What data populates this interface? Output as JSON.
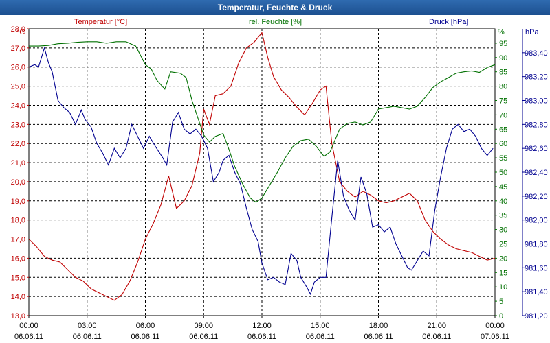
{
  "window": {
    "title": "Temperatur, Feuchte & Druck"
  },
  "colors": {
    "temp": "#c00000",
    "hum": "#007000",
    "press": "#000090",
    "grid": "#000000"
  },
  "chart_data": {
    "type": "line",
    "title": "Temperatur, Feuchte & Druck",
    "series_labels": {
      "temp": "Temperatur [°C]",
      "hum": "rel. Feuchte [%]",
      "press": "Druck [hPa]"
    },
    "units": {
      "temp": "°C",
      "hum": "%",
      "press": "hPa"
    },
    "x_range": [
      0,
      24
    ],
    "x_ticks": [
      {
        "t": 0,
        "time": "00:00",
        "date": "06.06.11"
      },
      {
        "t": 3,
        "time": "03:00",
        "date": "06.06.11"
      },
      {
        "t": 6,
        "time": "06:00",
        "date": "06.06.11"
      },
      {
        "t": 9,
        "time": "09:00",
        "date": "06.06.11"
      },
      {
        "t": 12,
        "time": "12:00",
        "date": "06.06.11"
      },
      {
        "t": 15,
        "time": "15:00",
        "date": "06.06.11"
      },
      {
        "t": 18,
        "time": "18:00",
        "date": "06.06.11"
      },
      {
        "t": 21,
        "time": "21:00",
        "date": "06.06.11"
      },
      {
        "t": 24,
        "time": "00:00",
        "date": "07.06.11"
      }
    ],
    "temp_range": [
      13,
      28
    ],
    "temp_ticks": [
      "13,0",
      "14,0",
      "15,0",
      "16,0",
      "17,0",
      "18,0",
      "19,0",
      "20,0",
      "21,0",
      "22,0",
      "23,0",
      "24,0",
      "25,0",
      "26,0",
      "27,0",
      "28,0"
    ],
    "hum_range": [
      0,
      100
    ],
    "hum_ticks": [
      "0",
      "5",
      "10",
      "15",
      "20",
      "25",
      "30",
      "35",
      "40",
      "45",
      "50",
      "55",
      "60",
      "65",
      "70",
      "75",
      "80",
      "85",
      "90",
      "95"
    ],
    "press_range": [
      981.2,
      983.6
    ],
    "press_ticks": [
      "981,20",
      "981,40",
      "981,60",
      "981,80",
      "982,00",
      "982,20",
      "982,40",
      "982,60",
      "982,80",
      "983,00",
      "983,20",
      "983,40"
    ],
    "series": [
      {
        "name": "Temperatur [°C]",
        "key": "temp",
        "points": [
          [
            0,
            17.0
          ],
          [
            0.4,
            16.6
          ],
          [
            0.8,
            16.1
          ],
          [
            1.2,
            15.9
          ],
          [
            1.6,
            15.8
          ],
          [
            2.0,
            15.4
          ],
          [
            2.4,
            15.0
          ],
          [
            2.8,
            14.8
          ],
          [
            3.2,
            14.4
          ],
          [
            3.6,
            14.2
          ],
          [
            4.0,
            14.0
          ],
          [
            4.4,
            13.8
          ],
          [
            4.8,
            14.1
          ],
          [
            5.2,
            14.8
          ],
          [
            5.6,
            15.8
          ],
          [
            6.0,
            17.0
          ],
          [
            6.4,
            17.8
          ],
          [
            6.8,
            18.8
          ],
          [
            7.2,
            20.3
          ],
          [
            7.6,
            18.6
          ],
          [
            8.0,
            19.0
          ],
          [
            8.4,
            19.8
          ],
          [
            8.8,
            21.5
          ],
          [
            9.0,
            23.8
          ],
          [
            9.3,
            23.0
          ],
          [
            9.6,
            24.5
          ],
          [
            10.0,
            24.6
          ],
          [
            10.4,
            25.0
          ],
          [
            10.8,
            26.2
          ],
          [
            11.2,
            27.0
          ],
          [
            11.6,
            27.3
          ],
          [
            12.0,
            27.8
          ],
          [
            12.3,
            26.5
          ],
          [
            12.6,
            25.5
          ],
          [
            13.0,
            24.8
          ],
          [
            13.4,
            24.4
          ],
          [
            13.8,
            23.9
          ],
          [
            14.2,
            23.5
          ],
          [
            14.6,
            24.1
          ],
          [
            15.0,
            24.8
          ],
          [
            15.3,
            25.0
          ],
          [
            15.6,
            22.0
          ],
          [
            16.0,
            20.0
          ],
          [
            16.4,
            19.5
          ],
          [
            16.8,
            19.2
          ],
          [
            17.2,
            19.5
          ],
          [
            17.6,
            19.3
          ],
          [
            18.0,
            19.0
          ],
          [
            18.4,
            18.9
          ],
          [
            18.8,
            19.0
          ],
          [
            19.2,
            19.2
          ],
          [
            19.6,
            19.4
          ],
          [
            20.0,
            19.0
          ],
          [
            20.4,
            18.0
          ],
          [
            20.8,
            17.4
          ],
          [
            21.2,
            17.0
          ],
          [
            21.6,
            16.7
          ],
          [
            22.0,
            16.5
          ],
          [
            22.4,
            16.4
          ],
          [
            22.8,
            16.3
          ],
          [
            23.2,
            16.1
          ],
          [
            23.6,
            15.9
          ],
          [
            24.0,
            16.0
          ]
        ]
      },
      {
        "name": "rel. Feuchte [%]",
        "key": "hum",
        "points": [
          [
            0,
            94.0
          ],
          [
            0.5,
            94.0
          ],
          [
            1.0,
            94.2
          ],
          [
            1.5,
            94.8
          ],
          [
            2.0,
            95.0
          ],
          [
            2.5,
            95.3
          ],
          [
            3.0,
            95.5
          ],
          [
            3.5,
            95.5
          ],
          [
            4.0,
            95.0
          ],
          [
            4.5,
            95.5
          ],
          [
            5.0,
            95.5
          ],
          [
            5.5,
            94.0
          ],
          [
            6.0,
            87.5
          ],
          [
            6.3,
            86.0
          ],
          [
            6.6,
            82.0
          ],
          [
            7.0,
            79.0
          ],
          [
            7.3,
            85.0
          ],
          [
            7.8,
            84.5
          ],
          [
            8.1,
            83.0
          ],
          [
            8.4,
            75.0
          ],
          [
            8.8,
            67.0
          ],
          [
            9.0,
            63.0
          ],
          [
            9.3,
            60.5
          ],
          [
            9.6,
            62.5
          ],
          [
            10.0,
            63.5
          ],
          [
            10.3,
            58.0
          ],
          [
            10.6,
            52.0
          ],
          [
            11.0,
            46.0
          ],
          [
            11.4,
            41.0
          ],
          [
            11.7,
            39.5
          ],
          [
            12.0,
            41.0
          ],
          [
            12.4,
            45.5
          ],
          [
            12.8,
            50.0
          ],
          [
            13.2,
            55.0
          ],
          [
            13.6,
            59.0
          ],
          [
            14.0,
            61.0
          ],
          [
            14.4,
            61.5
          ],
          [
            14.8,
            59.0
          ],
          [
            15.2,
            55.5
          ],
          [
            15.5,
            57.0
          ],
          [
            16.0,
            65.0
          ],
          [
            16.4,
            67.0
          ],
          [
            16.8,
            67.5
          ],
          [
            17.2,
            66.5
          ],
          [
            17.6,
            67.5
          ],
          [
            18.0,
            72.0
          ],
          [
            18.4,
            72.5
          ],
          [
            18.8,
            73.0
          ],
          [
            19.2,
            72.5
          ],
          [
            19.6,
            72.0
          ],
          [
            20.0,
            73.0
          ],
          [
            20.4,
            76.0
          ],
          [
            20.8,
            79.5
          ],
          [
            21.2,
            81.5
          ],
          [
            21.6,
            83.0
          ],
          [
            22.0,
            84.5
          ],
          [
            22.4,
            85.0
          ],
          [
            22.8,
            85.3
          ],
          [
            23.2,
            84.8
          ],
          [
            23.6,
            86.5
          ],
          [
            24.0,
            87.5
          ]
        ]
      },
      {
        "name": "Druck [hPa]",
        "key": "press",
        "points": [
          [
            0,
            983.28
          ],
          [
            0.3,
            983.3
          ],
          [
            0.5,
            983.28
          ],
          [
            0.8,
            983.44
          ],
          [
            1.0,
            983.32
          ],
          [
            1.2,
            983.24
          ],
          [
            1.5,
            983.0
          ],
          [
            1.8,
            982.94
          ],
          [
            2.1,
            982.9
          ],
          [
            2.4,
            982.8
          ],
          [
            2.7,
            982.92
          ],
          [
            2.9,
            982.84
          ],
          [
            3.2,
            982.78
          ],
          [
            3.5,
            982.64
          ],
          [
            3.8,
            982.56
          ],
          [
            4.1,
            982.46
          ],
          [
            4.4,
            982.6
          ],
          [
            4.7,
            982.52
          ],
          [
            5.0,
            982.6
          ],
          [
            5.3,
            982.8
          ],
          [
            5.6,
            982.7
          ],
          [
            5.9,
            982.6
          ],
          [
            6.2,
            982.7
          ],
          [
            6.5,
            982.62
          ],
          [
            6.9,
            982.52
          ],
          [
            7.1,
            982.46
          ],
          [
            7.4,
            982.82
          ],
          [
            7.7,
            982.9
          ],
          [
            8.0,
            982.76
          ],
          [
            8.3,
            982.72
          ],
          [
            8.6,
            982.76
          ],
          [
            8.9,
            982.7
          ],
          [
            9.2,
            982.6
          ],
          [
            9.5,
            982.32
          ],
          [
            9.8,
            982.4
          ],
          [
            10.0,
            982.5
          ],
          [
            10.3,
            982.54
          ],
          [
            10.6,
            982.4
          ],
          [
            10.9,
            982.3
          ],
          [
            11.2,
            982.1
          ],
          [
            11.5,
            981.92
          ],
          [
            11.8,
            981.82
          ],
          [
            12.0,
            981.64
          ],
          [
            12.3,
            981.5
          ],
          [
            12.6,
            981.52
          ],
          [
            12.9,
            981.48
          ],
          [
            13.2,
            981.46
          ],
          [
            13.5,
            981.72
          ],
          [
            13.8,
            981.66
          ],
          [
            14.0,
            981.52
          ],
          [
            14.3,
            981.44
          ],
          [
            14.5,
            981.38
          ],
          [
            14.7,
            981.48
          ],
          [
            15.0,
            981.52
          ],
          [
            15.3,
            981.52
          ],
          [
            15.6,
            982.02
          ],
          [
            15.9,
            982.5
          ],
          [
            16.2,
            982.2
          ],
          [
            16.5,
            982.08
          ],
          [
            16.8,
            982.0
          ],
          [
            17.1,
            982.36
          ],
          [
            17.4,
            982.22
          ],
          [
            17.7,
            981.94
          ],
          [
            18.0,
            981.96
          ],
          [
            18.3,
            981.9
          ],
          [
            18.6,
            981.94
          ],
          [
            18.9,
            981.8
          ],
          [
            19.2,
            981.7
          ],
          [
            19.5,
            981.6
          ],
          [
            19.7,
            981.58
          ],
          [
            20.0,
            981.66
          ],
          [
            20.3,
            981.74
          ],
          [
            20.6,
            981.7
          ],
          [
            20.9,
            982.08
          ],
          [
            21.2,
            982.36
          ],
          [
            21.5,
            982.6
          ],
          [
            21.8,
            982.76
          ],
          [
            22.1,
            982.8
          ],
          [
            22.4,
            982.74
          ],
          [
            22.7,
            982.76
          ],
          [
            23.0,
            982.7
          ],
          [
            23.3,
            982.6
          ],
          [
            23.6,
            982.54
          ],
          [
            23.9,
            982.6
          ]
        ]
      }
    ]
  }
}
